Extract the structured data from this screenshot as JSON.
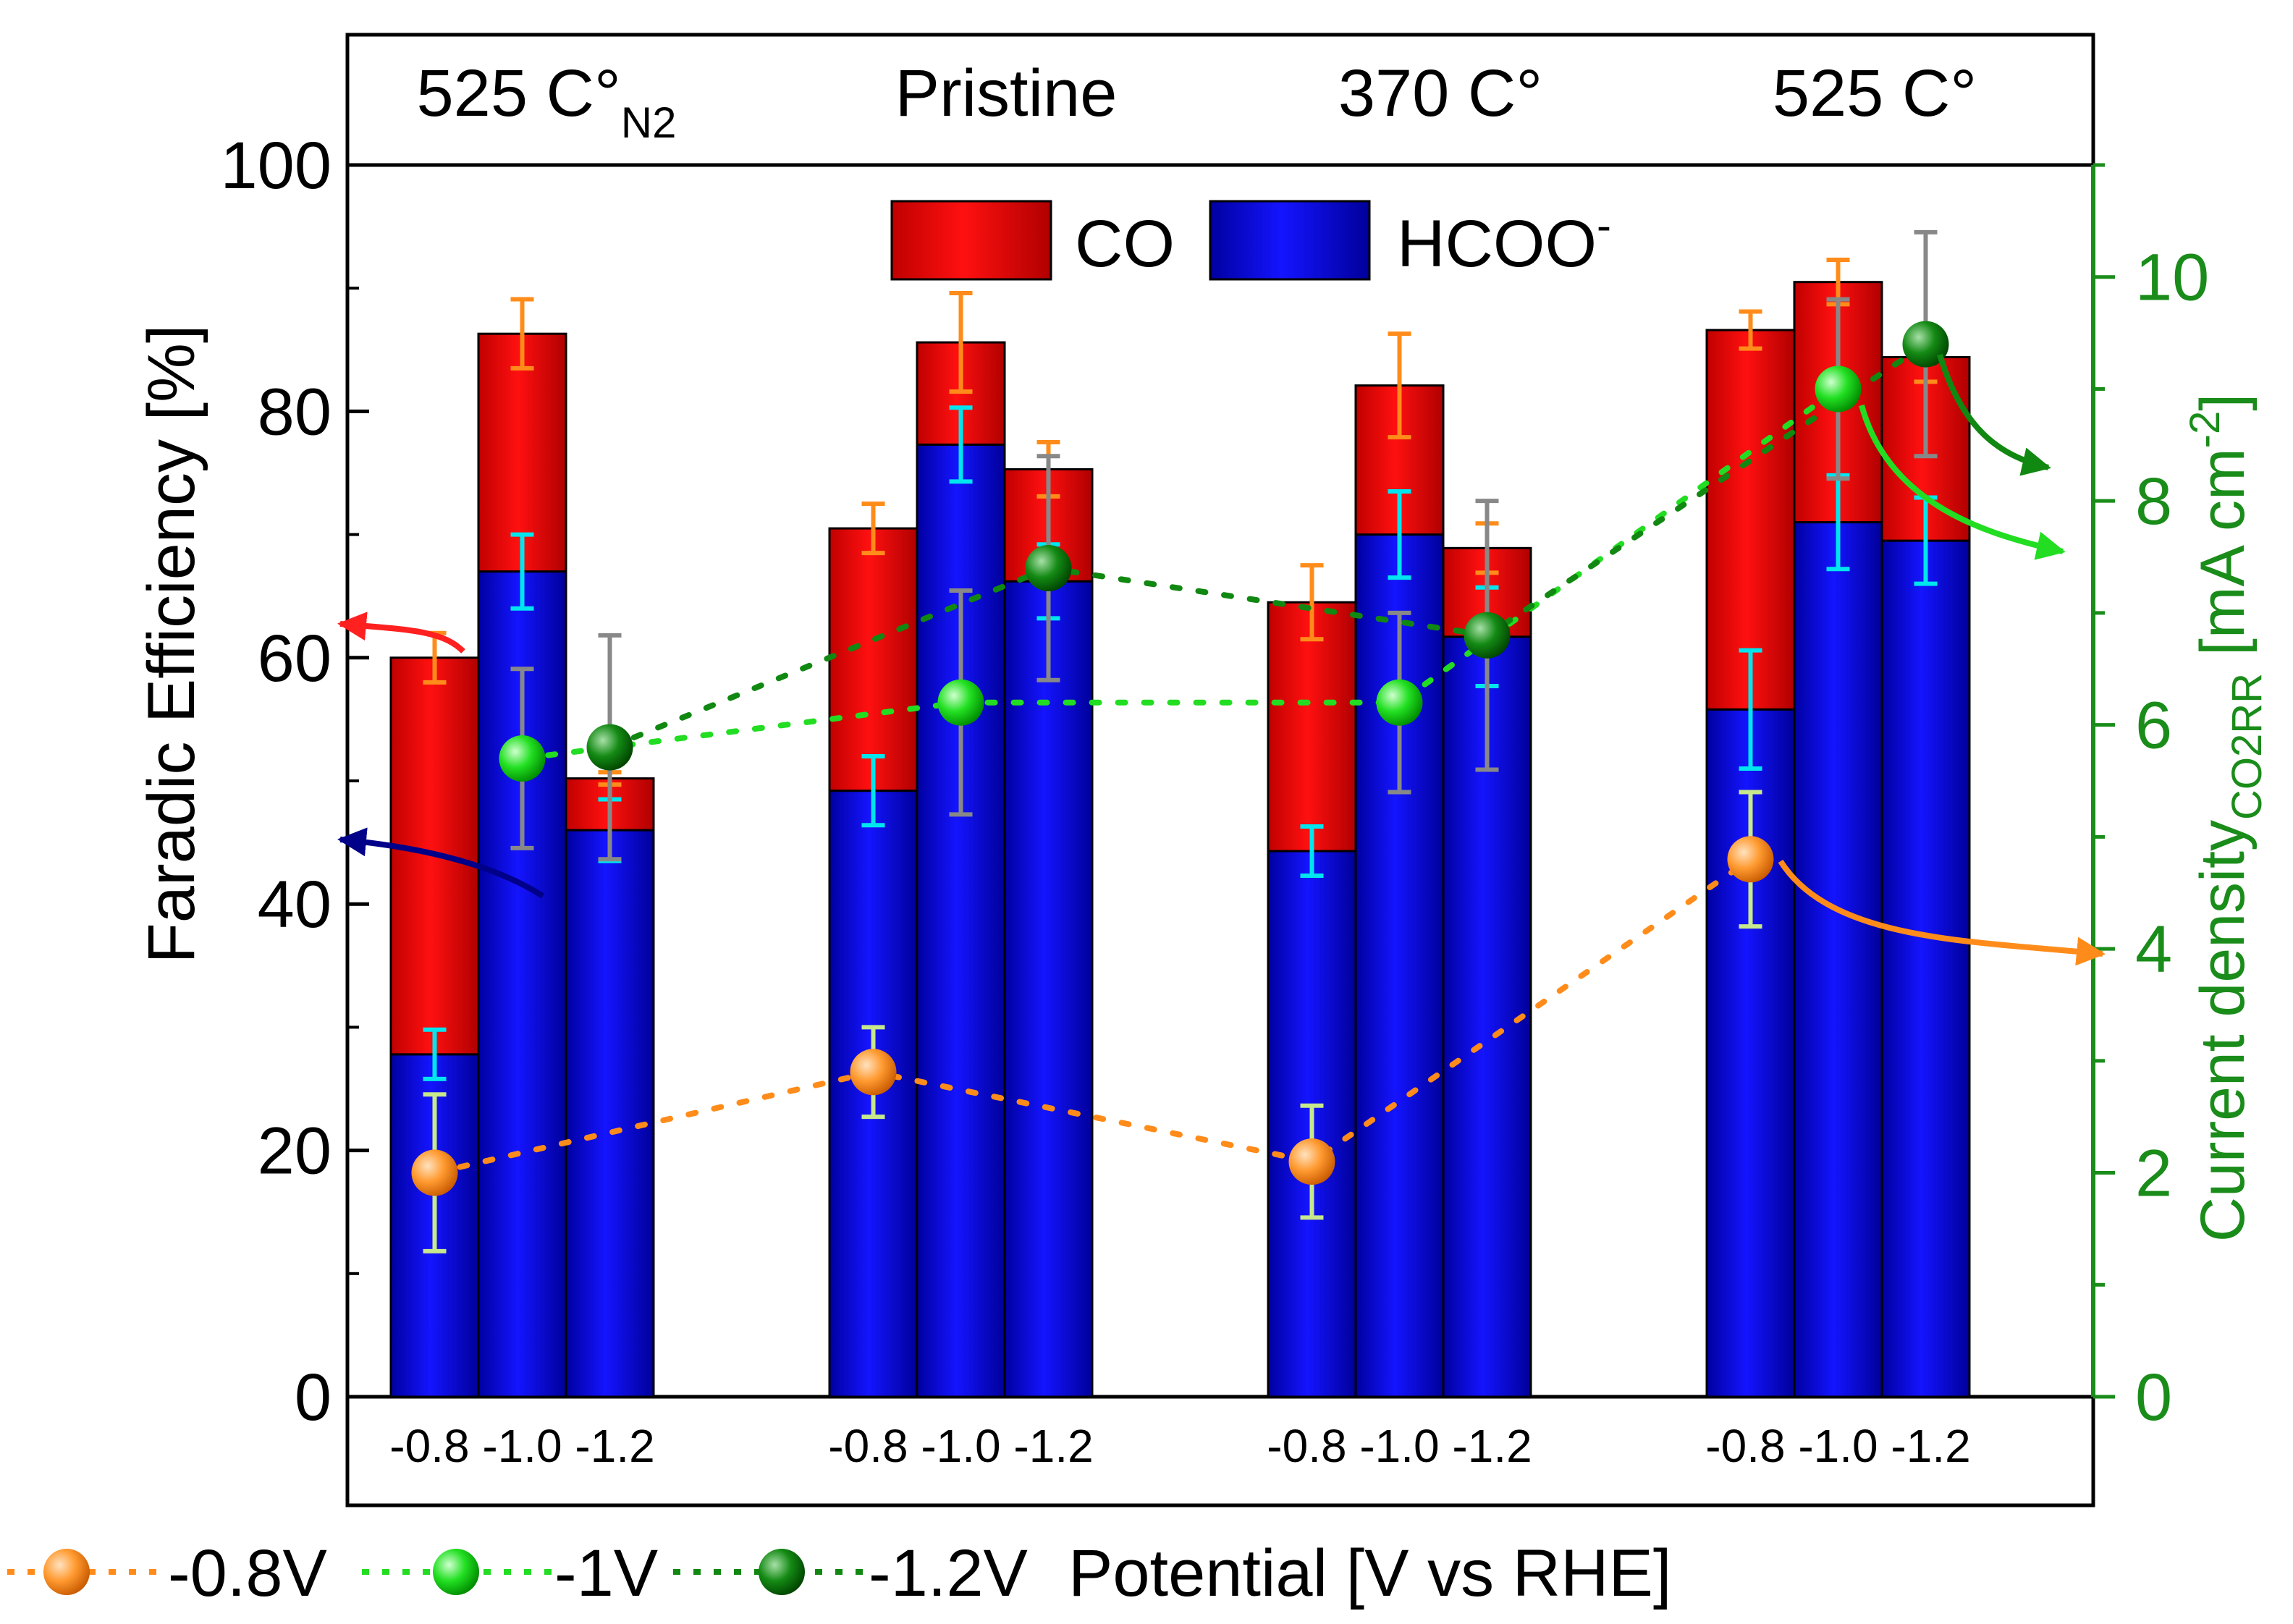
{
  "chart_data": {
    "type": "bar",
    "stacked": true,
    "groups": [
      {
        "label": "525 C°",
        "subscript": "N2"
      },
      {
        "label": "Pristine",
        "subscript": ""
      },
      {
        "label": "370 C°",
        "subscript": ""
      },
      {
        "label": "525 C°",
        "subscript": ""
      }
    ],
    "potentials": [
      "-0.8",
      "-1.0",
      "-1.2"
    ],
    "series": [
      {
        "name": "HCOO",
        "superscript": "-",
        "color": "#0000ee",
        "values": [
          [
            27.8,
            67.0,
            46.0
          ],
          [
            49.2,
            77.3,
            66.2
          ],
          [
            44.3,
            70.0,
            61.7
          ],
          [
            55.8,
            71.0,
            69.5
          ]
        ],
        "errors": [
          [
            2.0,
            3.0,
            2.5
          ],
          [
            2.8,
            3.0,
            3.0
          ],
          [
            2.0,
            3.5,
            4.0
          ],
          [
            4.8,
            3.8,
            3.5
          ]
        ]
      },
      {
        "name": "CO",
        "superscript": "",
        "color": "#ee0000",
        "values": [
          [
            32.2,
            19.3,
            4.2
          ],
          [
            21.3,
            8.3,
            9.1
          ],
          [
            20.2,
            12.1,
            7.2
          ],
          [
            30.8,
            19.5,
            14.9
          ]
        ],
        "errors": [
          [
            2.0,
            2.8,
            0.5
          ],
          [
            2.0,
            4.0,
            2.2
          ],
          [
            3.0,
            4.2,
            2.0
          ],
          [
            1.5,
            1.8,
            2.0
          ]
        ]
      }
    ],
    "current_density": [
      {
        "name": "-0.8V",
        "color": "#ff8c1a",
        "line_color": "#ff8c1a",
        "values": [
          2.0,
          2.9,
          2.1,
          4.8
        ],
        "errors": [
          0.7,
          0.4,
          0.5,
          0.6
        ]
      },
      {
        "name": "-1V",
        "color": "#22dd22",
        "line_color": "#22dd22",
        "values": [
          5.7,
          6.2,
          6.2,
          9.0
        ],
        "errors": [
          0.8,
          1.0,
          0.8,
          0.8
        ]
      },
      {
        "name": "-1.2V",
        "color": "#118811",
        "line_color": "#118811",
        "values": [
          5.8,
          7.4,
          6.8,
          9.4
        ],
        "errors": [
          1.0,
          1.0,
          1.2,
          1.0
        ]
      }
    ],
    "ylabel": "Faradic Efficiency [%]",
    "y2label": "Current density",
    "y2label_sub": "CO2RR",
    "y2label_units": " [mA cm",
    "y2label_sup": "-2",
    "y2label_end": "]",
    "xlabel": "Potential [V vs RHE]",
    "ylim": [
      0,
      100
    ],
    "y2lim": [
      0,
      11
    ],
    "yticks": [
      0,
      20,
      40,
      60,
      80,
      100
    ],
    "y2ticks": [
      0,
      2,
      4,
      6,
      8,
      10
    ],
    "colors": {
      "axis": "#000000",
      "y2axis": "#1a8c1a",
      "hcoo_error": "#00e5ee",
      "co_error": "#ff8c1a",
      "orange_error": "#c8e88c",
      "light_green_error": "#888888",
      "dark_green_error": "#888888",
      "red_arrow": "#ff2020",
      "blue_arrow": "#000088"
    }
  }
}
